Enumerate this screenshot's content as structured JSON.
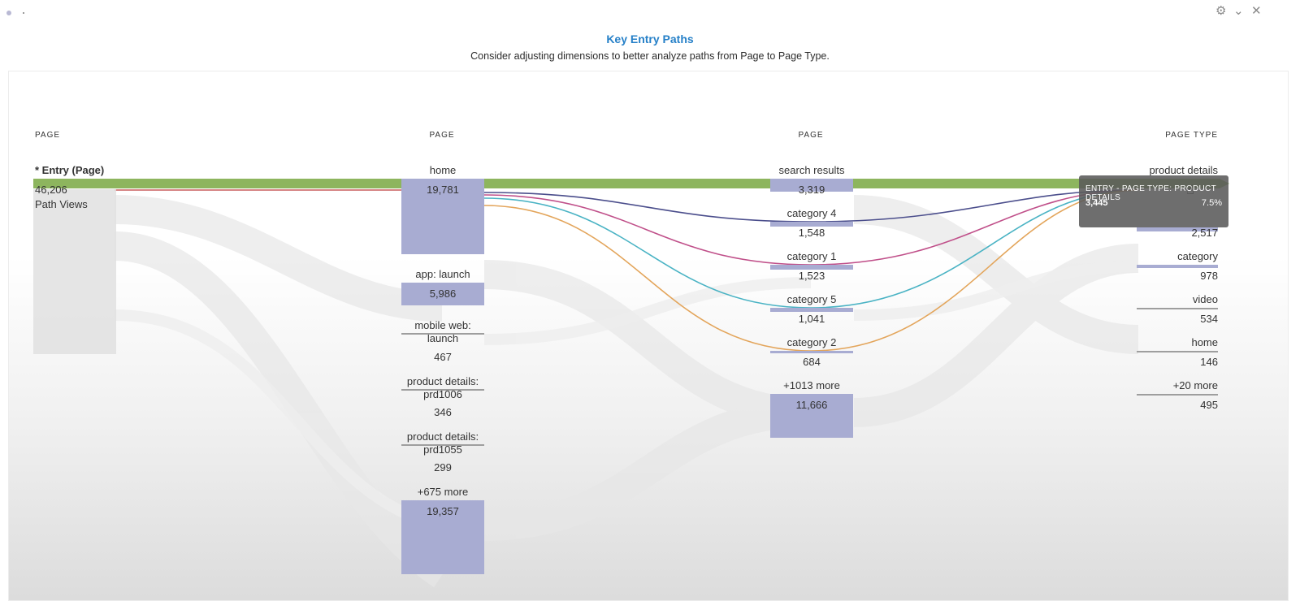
{
  "title": "Key Entry Paths",
  "subtitle": "Consider adjusting dimensions to better analyze paths from Page to Page Type.",
  "colors": {
    "title": "#2680c8",
    "highlight": "#8db55e",
    "node": "#a8acd2"
  },
  "columns": [
    "PAGE",
    "PAGE",
    "PAGE",
    "PAGE TYPE"
  ],
  "entry": {
    "label": "* Entry (Page)",
    "value": "46,206",
    "unit": "Path Views"
  },
  "col2": [
    {
      "label": "home",
      "value": "19,781"
    },
    {
      "label": "app: launch",
      "value": "5,986"
    },
    {
      "label": "mobile web: launch",
      "value": "467"
    },
    {
      "label": "product details: prd1006",
      "value": "346"
    },
    {
      "label": "product details: prd1055",
      "value": "299"
    },
    {
      "label": "+675 more",
      "value": "19,357"
    }
  ],
  "col3": [
    {
      "label": "search results",
      "value": "3,319"
    },
    {
      "label": "category 4",
      "value": "1,548"
    },
    {
      "label": "category 1",
      "value": "1,523"
    },
    {
      "label": "category 5",
      "value": "1,041"
    },
    {
      "label": "category 2",
      "value": "684"
    },
    {
      "label": "+1013 more",
      "value": "11,666"
    }
  ],
  "col4": [
    {
      "label": "product details",
      "value": ""
    },
    {
      "label": "",
      "value": "2,517"
    },
    {
      "label": "category",
      "value": "978"
    },
    {
      "label": "video",
      "value": "534"
    },
    {
      "label": "home",
      "value": "146"
    },
    {
      "label": "+20 more",
      "value": "495"
    }
  ],
  "tooltip": {
    "title": "ENTRY - PAGE TYPE: PRODUCT DETAILS",
    "count": "3,445",
    "percent": "7.5%"
  }
}
